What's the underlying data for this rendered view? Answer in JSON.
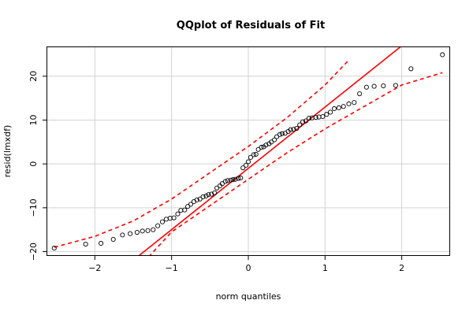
{
  "chart_data": {
    "type": "scatter",
    "title": "QQplot of Residuals of Fit",
    "xlabel": "norm quantiles",
    "ylabel": "resid(lmxdf)",
    "xlim": [
      -2.62,
      2.62
    ],
    "ylim": [
      -20.8,
      26.6
    ],
    "x_ticks": [
      -2,
      -1,
      0,
      1,
      2
    ],
    "y_ticks": [
      -20,
      -10,
      0,
      10,
      20
    ],
    "grid": true,
    "colors": {
      "points": "#000000",
      "reference_line": "#ff0000",
      "envelope": "#ff0000",
      "grid": "#d3d3d3"
    },
    "series": [
      {
        "kind": "points",
        "x": [
          -2.53,
          -2.12,
          -1.92,
          -1.76,
          -1.64,
          -1.54,
          -1.45,
          -1.38,
          -1.31,
          -1.24,
          -1.18,
          -1.12,
          -1.07,
          -1.02,
          -0.97,
          -0.92,
          -0.88,
          -0.83,
          -0.79,
          -0.75,
          -0.71,
          -0.67,
          -0.63,
          -0.59,
          -0.55,
          -0.52,
          -0.48,
          -0.44,
          -0.41,
          -0.37,
          -0.34,
          -0.3,
          -0.27,
          -0.23,
          -0.2,
          -0.17,
          -0.13,
          -0.1,
          -0.07,
          -0.03,
          0.0,
          0.03,
          0.07,
          0.1,
          0.13,
          0.17,
          0.2,
          0.23,
          0.27,
          0.3,
          0.34,
          0.37,
          0.41,
          0.44,
          0.48,
          0.52,
          0.55,
          0.59,
          0.63,
          0.67,
          0.71,
          0.75,
          0.79,
          0.83,
          0.88,
          0.92,
          0.97,
          1.02,
          1.07,
          1.12,
          1.18,
          1.24,
          1.31,
          1.38,
          1.45,
          1.54,
          1.64,
          1.76,
          1.92,
          2.12,
          2.53
        ],
        "y": [
          -19.2,
          -18.3,
          -18.1,
          -17.2,
          -16.2,
          -15.9,
          -15.6,
          -15.3,
          -15.2,
          -15.0,
          -14.1,
          -13.2,
          -12.6,
          -12.4,
          -12.3,
          -11.4,
          -10.6,
          -10.5,
          -9.7,
          -9.2,
          -8.6,
          -8.2,
          -8.0,
          -7.5,
          -7.3,
          -7.0,
          -6.9,
          -6.6,
          -5.5,
          -5.0,
          -4.5,
          -4.0,
          -3.8,
          -3.7,
          -3.6,
          -3.5,
          -3.3,
          -3.2,
          -0.9,
          -0.3,
          0.5,
          1.5,
          2.1,
          2.2,
          3.3,
          3.8,
          3.9,
          4.3,
          4.6,
          5.0,
          5.5,
          6.2,
          6.7,
          6.9,
          7.0,
          7.4,
          7.8,
          7.9,
          8.1,
          8.9,
          9.6,
          9.8,
          10.4,
          10.5,
          10.6,
          10.7,
          10.8,
          11.3,
          11.8,
          12.6,
          12.8,
          13.1,
          13.7,
          14.0,
          16.0,
          17.5,
          17.7,
          17.8,
          17.9,
          21.7,
          24.9
        ]
      },
      {
        "kind": "reference_line",
        "x": [
          -2.62,
          2.62
        ],
        "y": [
          -37.6,
          35.6
        ]
      },
      {
        "kind": "envelope_upper",
        "x": [
          -2.53,
          -2.0,
          -1.5,
          -1.0,
          -0.5,
          0.0,
          0.5,
          1.0,
          1.3
        ],
        "y": [
          -19.0,
          -16.5,
          -13.0,
          -8.0,
          -2.0,
          4.0,
          10.5,
          18.0,
          23.5
        ]
      },
      {
        "kind": "envelope_lower",
        "x": [
          -1.3,
          -1.0,
          -0.5,
          0.0,
          0.5,
          1.0,
          1.5,
          2.0,
          2.53
        ],
        "y": [
          -21.2,
          -15.5,
          -9.5,
          -3.5,
          2.5,
          8.0,
          13.0,
          18.0,
          20.8
        ]
      }
    ]
  }
}
